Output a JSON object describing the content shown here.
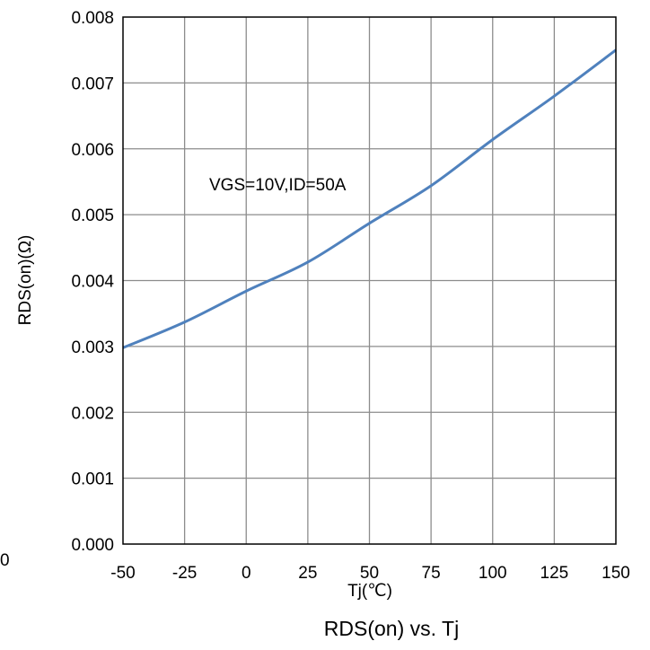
{
  "chart_data": {
    "type": "line",
    "title": "RDS(on) vs. Tj",
    "xlabel": "Tj(℃)",
    "ylabel": "RDS(on)(Ω)",
    "xlim": [
      -50,
      150
    ],
    "ylim": [
      0,
      0.008
    ],
    "x_ticks": [
      "-50",
      "-25",
      "0",
      "25",
      "50",
      "75",
      "100",
      "125",
      "150"
    ],
    "y_ticks": [
      "0.000",
      "0.001",
      "0.002",
      "0.003",
      "0.004",
      "0.005",
      "0.006",
      "0.007",
      "0.008"
    ],
    "stray_label": "0",
    "annotation": "VGS=10V,ID=50A",
    "grid": true,
    "series": [
      {
        "color": "#4f81bd",
        "x": [
          -50,
          -25,
          0,
          25,
          50,
          75,
          100,
          125,
          150
        ],
        "y": [
          0.00298,
          0.00337,
          0.00384,
          0.00428,
          0.00487,
          0.00544,
          0.00614,
          0.0068,
          0.0075
        ]
      }
    ]
  }
}
